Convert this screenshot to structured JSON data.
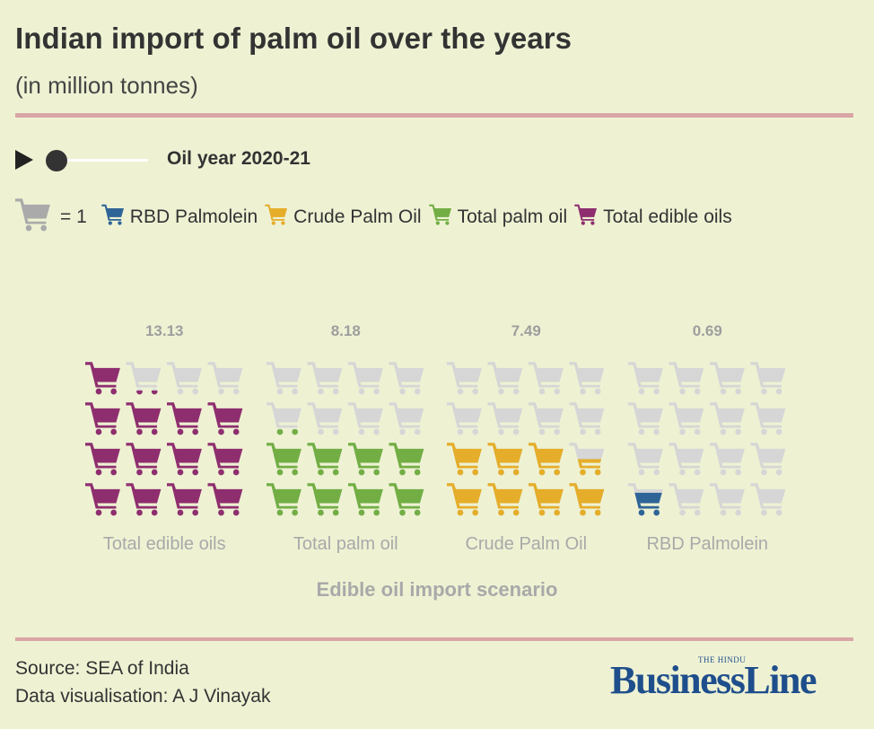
{
  "header": {
    "title": "Indian import of palm oil over the years",
    "subtitle": "(in million tonnes)"
  },
  "player": {
    "period_label": "Oil year 2020-21",
    "progress": 0
  },
  "legend": {
    "unit_text": "= 1",
    "items": [
      {
        "label": "RBD Palmolein",
        "color": "#2f6497"
      },
      {
        "label": "Crude Palm Oil",
        "color": "#e5ad29"
      },
      {
        "label": "Total palm oil",
        "color": "#72ae44"
      },
      {
        "label": "Total edible oils",
        "color": "#8f2e6e"
      }
    ],
    "unit_icon": "cart-icon",
    "unit_color": "#aaaaaa"
  },
  "colors": {
    "empty_cart": "#d6d6d6",
    "value_label": "#9e9e9e",
    "rule": "#d9a5a5",
    "background": "#eef2d3"
  },
  "chart_data": {
    "type": "pictogram",
    "unit": 1,
    "max_icons": 16,
    "categories": [
      "Total edible oils",
      "Total palm oil",
      "Crude Palm Oil",
      "RBD Palmolein"
    ],
    "values": [
      13.13,
      8.18,
      7.49,
      0.69
    ],
    "value_labels": [
      "13.13",
      "8.18",
      "7.49",
      "0.69"
    ],
    "colors": [
      "#8f2e6e",
      "#72ae44",
      "#e5ad29",
      "#2f6497"
    ],
    "xlabel": "Edible oil import scenario",
    "ylabel": ""
  },
  "footer": {
    "source": "Source: SEA of India",
    "credit": "Data visualisation: A J Vinayak"
  },
  "brand": {
    "tagline": "THE HINDU",
    "name": "BusinessLine"
  }
}
